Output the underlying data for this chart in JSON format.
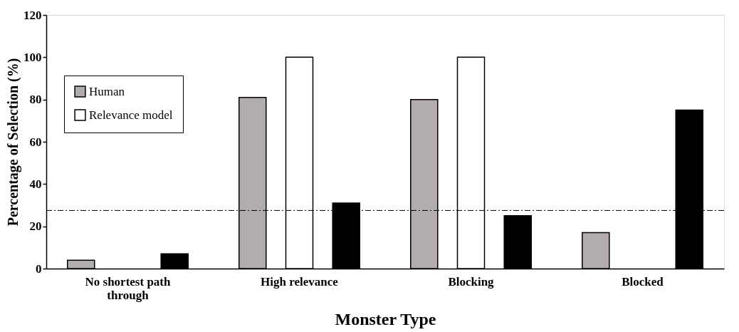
{
  "chart_data": {
    "type": "bar",
    "xlabel": "Monster Type",
    "ylabel": "Percentage of Selection (%)",
    "categories": [
      "No shortest path through",
      "High relevance",
      "Blocking",
      "Blocked"
    ],
    "series": [
      {
        "name": "Human",
        "color": "#b3acac",
        "values": [
          4,
          81,
          80,
          17
        ]
      },
      {
        "name": "Relevance model",
        "color": "#ffffff",
        "values": [
          0,
          100,
          100,
          0
        ]
      },
      {
        "color": "#000000",
        "values": [
          7,
          31,
          25,
          75
        ]
      }
    ],
    "ylim": [
      0,
      120
    ],
    "yticks": [
      0,
      20,
      40,
      60,
      80,
      100,
      120
    ],
    "grid": false,
    "legend": "top left",
    "ref_lines": [
      {
        "axis": "y",
        "value": 27.5,
        "color": "#000000",
        "line_style": "dashed"
      }
    ]
  }
}
